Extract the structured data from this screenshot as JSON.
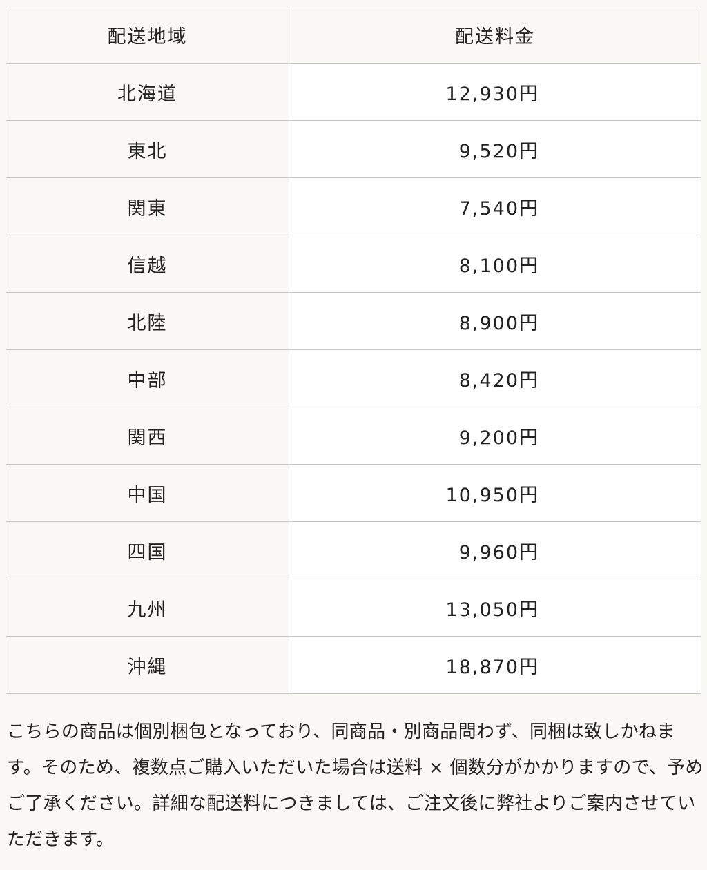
{
  "table": {
    "headers": [
      "配送地域",
      "配送料金"
    ],
    "rows": [
      {
        "region": "北海道",
        "price": "12,930円"
      },
      {
        "region": "東北",
        "price": "9,520円"
      },
      {
        "region": "関東",
        "price": "7,540円"
      },
      {
        "region": "信越",
        "price": "8,100円"
      },
      {
        "region": "北陸",
        "price": "8,900円"
      },
      {
        "region": "中部",
        "price": "8,420円"
      },
      {
        "region": "関西",
        "price": "9,200円"
      },
      {
        "region": "中国",
        "price": "10,950円"
      },
      {
        "region": "四国",
        "price": "9,960円"
      },
      {
        "region": "九州",
        "price": "13,050円"
      },
      {
        "region": "沖縄",
        "price": "18,870円"
      }
    ]
  },
  "note": "こちらの商品は個別梱包となっており、同商品・別商品問わず、同梱は致しかねます。そのため、複数点ご購入いただいた場合は送料 × 個数分がかかりますので、予めご了承ください。詳細な配送料につきましては、ご注文後に弊社よりご案内させていただきます。",
  "colors": {
    "background": "#f9f8f4",
    "price_cell": "#ffffff",
    "border": "#c4c4c4"
  }
}
